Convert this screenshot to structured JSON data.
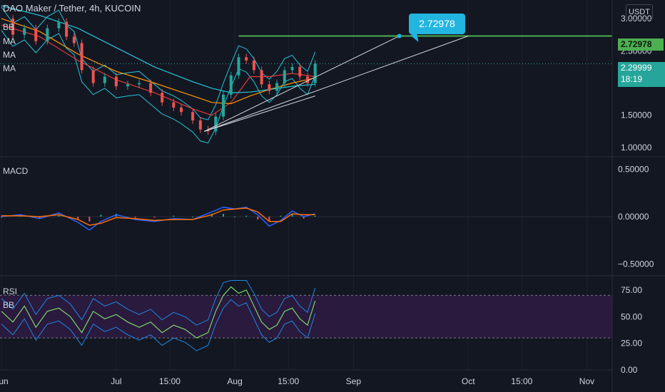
{
  "header": {
    "symbol": "DAO Maker / Tether, 4h, KUCOIN",
    "indicators": [
      "BB",
      "MA",
      "MA",
      "MA"
    ],
    "currency": "USDT"
  },
  "callout": {
    "label": "2.72978"
  },
  "colors": {
    "background": "#131722",
    "up": "#26a69a",
    "down": "#ef5350",
    "price_line": "#4caf50",
    "bb": "#1e88e5",
    "ma_fast": "#e53935",
    "ma_mid": "#ff9800",
    "ma_slow": "#26c6da",
    "macd": "#2962ff",
    "signal": "#ff6d00",
    "rsi": "#7cd36b",
    "rsi_band": "#2a1a3d"
  },
  "chart_data": [
    {
      "type": "line",
      "title": "DAO Maker / Tether, 4h, KUCOIN",
      "y_ticks": [
        "3.00000",
        "2.50000",
        "1.50000",
        "1.00000"
      ],
      "ylim": [
        0.9,
        3.2
      ],
      "x_ticks": [
        "Jun",
        "Jul",
        "15:00",
        "Aug",
        "15:00",
        "Sep",
        "Oct",
        "15:00",
        "Nov"
      ],
      "x_tick_positions": [
        0,
        30,
        44,
        61,
        75,
        92,
        122,
        136,
        153
      ],
      "price_line": {
        "label": "2.72978",
        "value": 2.72978
      },
      "last_price": {
        "label": "2.29999",
        "countdown": "18:19",
        "value": 2.29999
      },
      "close_series": [
        [
          0,
          3.0
        ],
        [
          3,
          2.75
        ],
        [
          6,
          2.85
        ],
        [
          9,
          2.65
        ],
        [
          12,
          2.85
        ],
        [
          15,
          2.95
        ],
        [
          17,
          2.72
        ],
        [
          19,
          2.62
        ],
        [
          21,
          2.2
        ],
        [
          24,
          2.0
        ],
        [
          27,
          2.1
        ],
        [
          30,
          1.95
        ],
        [
          33,
          1.98
        ],
        [
          36,
          2.0
        ],
        [
          39,
          1.85
        ],
        [
          42,
          1.7
        ],
        [
          45,
          1.62
        ],
        [
          47,
          1.55
        ],
        [
          50,
          1.42
        ],
        [
          52,
          1.28
        ],
        [
          54,
          1.25
        ],
        [
          56,
          1.48
        ],
        [
          58,
          1.82
        ],
        [
          60,
          2.12
        ],
        [
          62,
          2.4
        ],
        [
          64,
          2.35
        ],
        [
          66,
          2.2
        ],
        [
          68,
          1.98
        ],
        [
          70,
          1.88
        ],
        [
          72,
          2.0
        ],
        [
          74,
          2.2
        ],
        [
          76,
          2.25
        ],
        [
          78,
          2.1
        ],
        [
          80,
          2.0
        ],
        [
          82,
          2.3
        ]
      ],
      "ma_series": [
        {
          "name": "MA",
          "values": [
            [
              0,
              2.9
            ],
            [
              10,
              2.72
            ],
            [
              20,
              2.35
            ],
            [
              30,
              2.05
            ],
            [
              40,
              1.85
            ],
            [
              50,
              1.6
            ],
            [
              55,
              1.5
            ],
            [
              60,
              1.7
            ],
            [
              65,
              2.1
            ],
            [
              70,
              2.1
            ],
            [
              76,
              2.15
            ],
            [
              82,
              2.1
            ]
          ]
        },
        {
          "name": "MA",
          "values": [
            [
              0,
              3.0
            ],
            [
              10,
              2.8
            ],
            [
              20,
              2.45
            ],
            [
              30,
              2.18
            ],
            [
              40,
              2.0
            ],
            [
              50,
              1.8
            ],
            [
              55,
              1.7
            ],
            [
              60,
              1.68
            ],
            [
              65,
              1.8
            ],
            [
              70,
              1.9
            ],
            [
              76,
              2.0
            ],
            [
              82,
              2.08
            ]
          ]
        },
        {
          "name": "MA",
          "values": [
            [
              0,
              3.2
            ],
            [
              10,
              3.05
            ],
            [
              20,
              2.85
            ],
            [
              30,
              2.55
            ],
            [
              40,
              2.25
            ],
            [
              50,
              2.02
            ],
            [
              55,
              1.92
            ],
            [
              60,
              1.85
            ],
            [
              65,
              1.86
            ],
            [
              70,
              1.9
            ],
            [
              76,
              1.95
            ],
            [
              82,
              1.98
            ]
          ]
        }
      ],
      "trend_lines": [
        {
          "from": [
            53,
            1.25
          ],
          "to": [
            104,
            2.72978
          ]
        },
        {
          "from": [
            53,
            1.25
          ],
          "to": [
            122,
            2.72978
          ]
        },
        {
          "from": [
            53,
            1.25
          ],
          "to": [
            82,
            1.8
          ]
        }
      ]
    },
    {
      "type": "line",
      "title": "MACD",
      "y_ticks": [
        "0.50000",
        "0.00000",
        "−0.50000"
      ],
      "ylim": [
        -0.6,
        0.6
      ],
      "macd": [
        [
          0,
          0.0
        ],
        [
          5,
          0.02
        ],
        [
          10,
          -0.02
        ],
        [
          15,
          0.04
        ],
        [
          20,
          -0.06
        ],
        [
          23,
          -0.14
        ],
        [
          26,
          -0.05
        ],
        [
          30,
          0.02
        ],
        [
          35,
          -0.03
        ],
        [
          40,
          -0.05
        ],
        [
          45,
          -0.02
        ],
        [
          50,
          -0.03
        ],
        [
          55,
          0.05
        ],
        [
          58,
          0.1
        ],
        [
          61,
          0.08
        ],
        [
          64,
          0.1
        ],
        [
          67,
          0.02
        ],
        [
          70,
          -0.1
        ],
        [
          73,
          -0.04
        ],
        [
          76,
          0.06
        ],
        [
          79,
          0.0
        ],
        [
          82,
          0.03
        ]
      ],
      "signal": [
        [
          0,
          0.01
        ],
        [
          5,
          0.01
        ],
        [
          10,
          0.0
        ],
        [
          15,
          0.02
        ],
        [
          20,
          -0.03
        ],
        [
          23,
          -0.09
        ],
        [
          26,
          -0.07
        ],
        [
          30,
          -0.01
        ],
        [
          35,
          -0.02
        ],
        [
          40,
          -0.04
        ],
        [
          45,
          -0.03
        ],
        [
          50,
          -0.03
        ],
        [
          55,
          0.02
        ],
        [
          58,
          0.07
        ],
        [
          61,
          0.08
        ],
        [
          64,
          0.09
        ],
        [
          67,
          0.05
        ],
        [
          70,
          -0.05
        ],
        [
          73,
          -0.05
        ],
        [
          76,
          0.03
        ],
        [
          79,
          0.02
        ],
        [
          82,
          0.02
        ]
      ]
    },
    {
      "type": "line",
      "title": "RSI",
      "y_ticks": [
        "75.00",
        "50.00",
        "25.00",
        "0.00"
      ],
      "ylim": [
        0,
        85
      ],
      "overbought": 70,
      "oversold": 30,
      "rsi": [
        [
          0,
          55
        ],
        [
          3,
          45
        ],
        [
          6,
          60
        ],
        [
          9,
          40
        ],
        [
          12,
          55
        ],
        [
          15,
          58
        ],
        [
          18,
          50
        ],
        [
          21,
          35
        ],
        [
          24,
          55
        ],
        [
          27,
          48
        ],
        [
          30,
          52
        ],
        [
          33,
          45
        ],
        [
          36,
          40
        ],
        [
          39,
          45
        ],
        [
          42,
          35
        ],
        [
          45,
          42
        ],
        [
          48,
          38
        ],
        [
          51,
          30
        ],
        [
          54,
          35
        ],
        [
          56,
          55
        ],
        [
          58,
          70
        ],
        [
          60,
          78
        ],
        [
          62,
          72
        ],
        [
          64,
          75
        ],
        [
          66,
          60
        ],
        [
          68,
          45
        ],
        [
          70,
          38
        ],
        [
          72,
          42
        ],
        [
          74,
          55
        ],
        [
          76,
          58
        ],
        [
          78,
          48
        ],
        [
          80,
          42
        ],
        [
          82,
          65
        ]
      ]
    }
  ]
}
